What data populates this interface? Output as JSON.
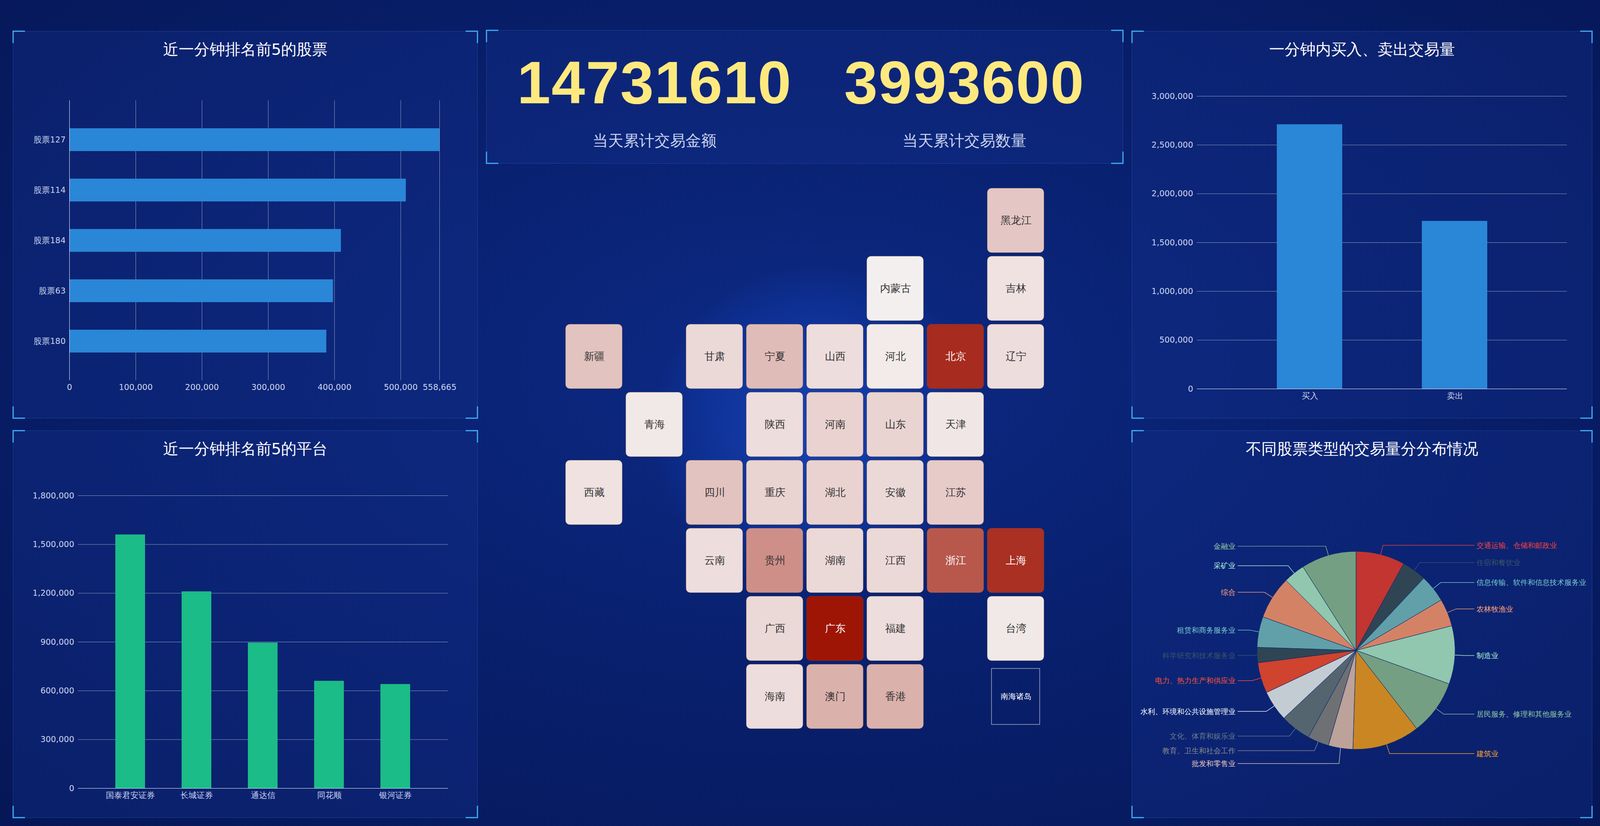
{
  "kpis": [
    {
      "value": 14731610,
      "label": "当天累计交易金额"
    },
    {
      "value": 3993600,
      "label": "当天累计交易数量"
    }
  ],
  "chart_data": [
    {
      "type": "bar",
      "orientation": "horizontal",
      "title": "近一分钟排名前5的股票",
      "categories": [
        "股票127",
        "股票114",
        "股票184",
        "股票63",
        "股票180"
      ],
      "values": [
        558665,
        508000,
        410000,
        398000,
        388000
      ],
      "color": "#2a86d6",
      "xlim": [
        0,
        558665
      ],
      "xticks": [
        0,
        {
          "value": 100000,
          "label": "100,000"
        },
        {
          "value": 200000,
          "label": "200,000"
        },
        {
          "value": 300000,
          "label": "300,000"
        },
        {
          "value": 400000,
          "label": "400,000"
        },
        {
          "value": 500000,
          "label": "500,000"
        },
        {
          "value": 558665,
          "label": "558,665"
        }
      ],
      "grid": true
    },
    {
      "type": "bar",
      "title": "近一分钟排名前5的平台",
      "categories": [
        "国泰君安证券",
        "长城证券",
        "通达信",
        "同花顺",
        "银河证券"
      ],
      "values": [
        1560000,
        1210000,
        895000,
        660000,
        640000
      ],
      "color": "#1bbc87",
      "ylim": [
        0,
        1800000
      ],
      "yticks": [
        0,
        {
          "value": 300000,
          "label": "300,000"
        },
        {
          "value": 600000,
          "label": "600,000"
        },
        {
          "value": 900000,
          "label": "900,000"
        },
        {
          "value": 1200000,
          "label": "1,200,000"
        },
        {
          "value": 1500000,
          "label": "1,500,000"
        },
        {
          "value": 1800000,
          "label": "1,800,000"
        }
      ],
      "grid": true
    },
    {
      "type": "bar",
      "title": "一分钟内买入、卖出交易量",
      "categories": [
        "买入",
        "卖出"
      ],
      "values": [
        2710000,
        1720000
      ],
      "color": "#2a86d6",
      "ylim": [
        0,
        3000000
      ],
      "yticks": [
        0,
        {
          "value": 500000,
          "label": "500,000"
        },
        {
          "value": 1000000,
          "label": "1,000,000"
        },
        {
          "value": 1500000,
          "label": "1,500,000"
        },
        {
          "value": 2000000,
          "label": "2,000,000"
        },
        {
          "value": 2500000,
          "label": "2,500,000"
        },
        {
          "value": 3000000,
          "label": "3,000,000"
        }
      ],
      "grid": true
    },
    {
      "type": "pie",
      "title": "不同股票类型的交易量分分布情况",
      "categories": [
        "交通运输、仓储和邮政业",
        "住宿和餐饮业",
        "信息传输、软件和信息技术服务业",
        "农林牧渔业",
        "制造业",
        "居民服务、修理和其他服务业",
        "建筑业",
        "批发和零售业",
        "教育、卫生和社会工作",
        "文化、体育和娱乐业",
        "水利、环境和公共设施管理业",
        "电力、热力生产和供应业",
        "科学研究和技术服务业",
        "租赁和商务服务业",
        "综合",
        "采矿业",
        "金融业"
      ],
      "values": [
        8,
        4,
        4.5,
        4.5,
        9.5,
        9,
        11,
        4,
        3.5,
        5,
        5,
        5,
        2.5,
        5,
        7,
        3.5,
        9
      ],
      "colors": [
        "#c23531",
        "#2f4554",
        "#61a0a8",
        "#d48265",
        "#91c7ae",
        "#749f83",
        "#ca8622",
        "#bda29a",
        "#6e7074",
        "#546570",
        "#c4ccd3",
        "#d0432e",
        "#2f4554",
        "#61a0a8",
        "#d48265",
        "#91c7ae",
        "#749f83"
      ]
    },
    {
      "type": "map",
      "categories": [
        "黑龙江",
        "吉林",
        "内蒙古",
        "新疆",
        "甘肃",
        "宁夏",
        "山西",
        "河北",
        "北京",
        "辽宁",
        "青海",
        "陕西",
        "河南",
        "山东",
        "天津",
        "西藏",
        "四川",
        "重庆",
        "湖北",
        "安徽",
        "江苏",
        "云南",
        "贵州",
        "湖南",
        "江西",
        "浙江",
        "上海",
        "广西",
        "广东",
        "福建",
        "台湾",
        "海南",
        "澳门",
        "香港"
      ],
      "values": [
        20,
        8,
        2,
        22,
        12,
        25,
        10,
        4,
        90,
        10,
        5,
        10,
        15,
        14,
        6,
        8,
        22,
        14,
        15,
        12,
        18,
        10,
        45,
        12,
        12,
        70,
        88,
        12,
        100,
        10,
        5,
        10,
        30,
        30
      ],
      "inset_title": "南海诸岛"
    }
  ]
}
